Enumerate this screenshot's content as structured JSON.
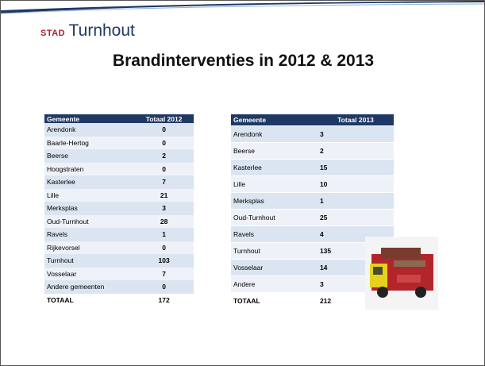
{
  "header": {
    "logo_prefix": "STAD",
    "logo_name": "Turnhout"
  },
  "title": "Brandinterventies in  2012 & 2013",
  "tables": [
    {
      "columns": [
        "Gemeente",
        "Totaal 2012"
      ],
      "rows": [
        [
          "Arendonk",
          0
        ],
        [
          "Baarle-Hertog",
          0
        ],
        [
          "Beerse",
          2
        ],
        [
          "Hoogstraten",
          0
        ],
        [
          "Kasterlee",
          7
        ],
        [
          "Lille",
          21
        ],
        [
          "Merksplas",
          3
        ],
        [
          "Oud-Turnhout",
          28
        ],
        [
          "Ravels",
          1
        ],
        [
          "Rijkevorsel",
          0
        ],
        [
          "Turnhout",
          103
        ],
        [
          "Vosselaar",
          7
        ],
        [
          "Andere gemeenten",
          0
        ],
        [
          "TOTAAL",
          172
        ]
      ]
    },
    {
      "columns": [
        "Gemeente",
        "Totaal 2013"
      ],
      "rows": [
        [
          "Arendonk",
          3
        ],
        [
          "Beerse",
          2
        ],
        [
          "Kasterlee",
          15
        ],
        [
          "Lille",
          10
        ],
        [
          "Merksplas",
          1
        ],
        [
          "Oud-Turnhout",
          25
        ],
        [
          "Ravels",
          4
        ],
        [
          "Turnhout",
          135
        ],
        [
          "Vosselaar",
          14
        ],
        [
          "Andere",
          3
        ],
        [
          "TOTAAL",
          212
        ]
      ]
    }
  ]
}
